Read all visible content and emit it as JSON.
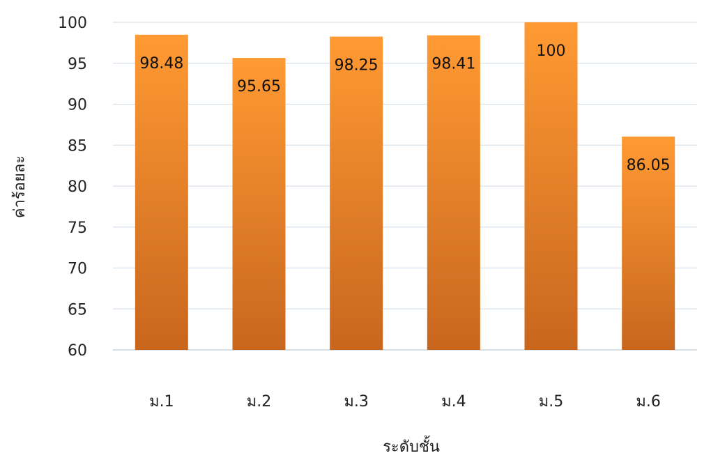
{
  "chart_data": {
    "type": "bar",
    "title": "",
    "xlabel": "ระดับชั้น",
    "ylabel": "ค่าร้อยละ",
    "categories": [
      "ม.1",
      "ม.2",
      "ม.3",
      "ม.4",
      "ม.5",
      "ม.6"
    ],
    "values": [
      98.48,
      95.65,
      98.25,
      98.41,
      100,
      86.05
    ],
    "data_labels": [
      "98.48",
      "95.65",
      "98.25",
      "98.41",
      "100",
      "86.05"
    ],
    "ylim": [
      60,
      100
    ],
    "yticks": [
      60,
      65,
      70,
      75,
      80,
      85,
      90,
      95,
      100
    ],
    "grid": true,
    "legend": "none",
    "colors": {
      "bar_top": "#FF9A33",
      "bar_bottom": "#C8661E",
      "grid": "#D9E2EC",
      "axis": "#C9D3DE"
    }
  }
}
